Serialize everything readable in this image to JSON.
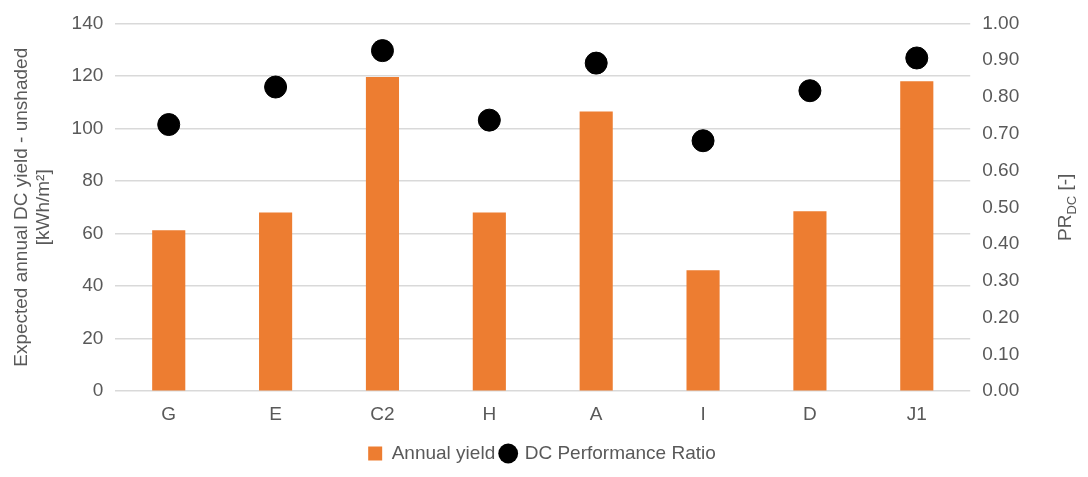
{
  "chart_data": {
    "type": "bar",
    "categories": [
      "G",
      "E",
      "C2",
      "H",
      "A",
      "I",
      "D",
      "J1"
    ],
    "series": [
      {
        "name": "Annual yield",
        "color": "#ed7d31",
        "values": [
          61.3,
          68.0,
          119.6,
          68.0,
          106.5,
          46.0,
          68.5,
          118.0
        ]
      },
      {
        "name": "DC Performance Ratio",
        "type": "scatter",
        "axis": "y2",
        "color": "#000000",
        "x": [
          "G",
          "E",
          "C2",
          "H",
          "A",
          "I",
          "D",
          "J1"
        ],
        "values": [
          0.725,
          0.827,
          0.926,
          0.737,
          0.892,
          0.681,
          0.817,
          0.906
        ]
      }
    ],
    "ylabel": "Expected annual DC yield - unshaded\n[kWh/m²]",
    "y2label": "PR$_{DC}$ [-]",
    "ylim": [
      0,
      140
    ],
    "yticks": [
      0,
      20,
      40,
      60,
      80,
      100,
      120,
      140
    ],
    "y2lim": [
      0,
      1
    ],
    "y2ticks": [
      {
        "value": 0,
        "label": "0.00"
      },
      {
        "value": 0.1,
        "label": "0.10"
      },
      {
        "value": 0.2,
        "label": "0.20"
      },
      {
        "value": 0.3,
        "label": "0.30"
      },
      {
        "value": 0.4,
        "label": "0.40"
      },
      {
        "value": 0.5,
        "label": "0.50"
      },
      {
        "value": 0.6,
        "label": "0.60"
      },
      {
        "value": 0.7,
        "label": "0.70"
      },
      {
        "value": 0.8,
        "label": "0.80"
      },
      {
        "value": 0.9,
        "label": "0.90"
      },
      {
        "value": 1,
        "label": "1.00"
      }
    ],
    "grid": "y",
    "legend": "bottom",
    "marker": "circle"
  }
}
